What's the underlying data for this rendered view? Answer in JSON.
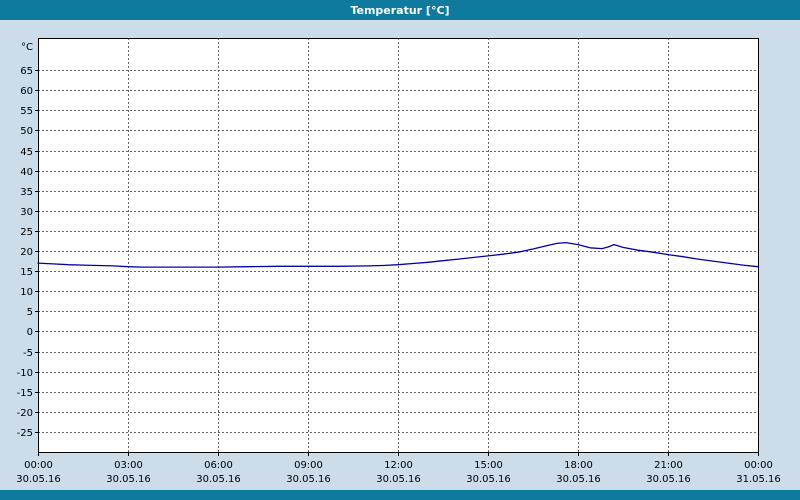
{
  "chart_data": {
    "type": "line",
    "title": "Temperatur [°C]",
    "ylabel": "°C",
    "xlim": [
      0,
      24
    ],
    "ylim": [
      -30,
      73
    ],
    "grid": true,
    "legend": false,
    "y_ticks": [
      65,
      60,
      55,
      50,
      45,
      40,
      35,
      30,
      25,
      20,
      15,
      10,
      5,
      0,
      -5,
      -10,
      -15,
      -20,
      -25
    ],
    "x_ticks": [
      {
        "hour": 0,
        "time": "00:00",
        "date": "30.05.16"
      },
      {
        "hour": 3,
        "time": "03:00",
        "date": "30.05.16"
      },
      {
        "hour": 6,
        "time": "06:00",
        "date": "30.05.16"
      },
      {
        "hour": 9,
        "time": "09:00",
        "date": "30.05.16"
      },
      {
        "hour": 12,
        "time": "12:00",
        "date": "30.05.16"
      },
      {
        "hour": 15,
        "time": "15:00",
        "date": "30.05.16"
      },
      {
        "hour": 18,
        "time": "18:00",
        "date": "30.05.16"
      },
      {
        "hour": 21,
        "time": "21:00",
        "date": "30.05.16"
      },
      {
        "hour": 24,
        "time": "00:00",
        "date": "31.05.16"
      }
    ],
    "series": [
      {
        "name": "Temperatur",
        "color": "#0000a8",
        "x": [
          0,
          0.5,
          1,
          1.5,
          2,
          2.5,
          3,
          3.5,
          4,
          5,
          6,
          7,
          8,
          9,
          10,
          11,
          11.5,
          12,
          12.5,
          13,
          13.5,
          14,
          14.5,
          15,
          15.5,
          16,
          16.5,
          17,
          17.3,
          17.6,
          18,
          18.4,
          18.8,
          19,
          19.2,
          19.5,
          20,
          20.5,
          21,
          21.5,
          22,
          22.5,
          23,
          23.5,
          24
        ],
        "values": [
          17.0,
          16.8,
          16.6,
          16.5,
          16.4,
          16.3,
          16.1,
          16.0,
          16.0,
          16.0,
          16.0,
          16.1,
          16.2,
          16.2,
          16.2,
          16.3,
          16.4,
          16.6,
          16.9,
          17.2,
          17.6,
          18.0,
          18.4,
          18.8,
          19.2,
          19.7,
          20.5,
          21.4,
          21.9,
          22.1,
          21.6,
          20.8,
          20.6,
          21.0,
          21.6,
          20.9,
          20.2,
          19.7,
          19.1,
          18.6,
          18.0,
          17.5,
          17.0,
          16.5,
          16.1
        ]
      }
    ]
  },
  "colors": {
    "header_bg": "#0d7a9e",
    "header_text": "#ffffff",
    "page_bg": "#ccdce9",
    "plot_bg": "#ffffff",
    "grid": "#666666",
    "axis": "#000000",
    "line": "#0000a8"
  }
}
